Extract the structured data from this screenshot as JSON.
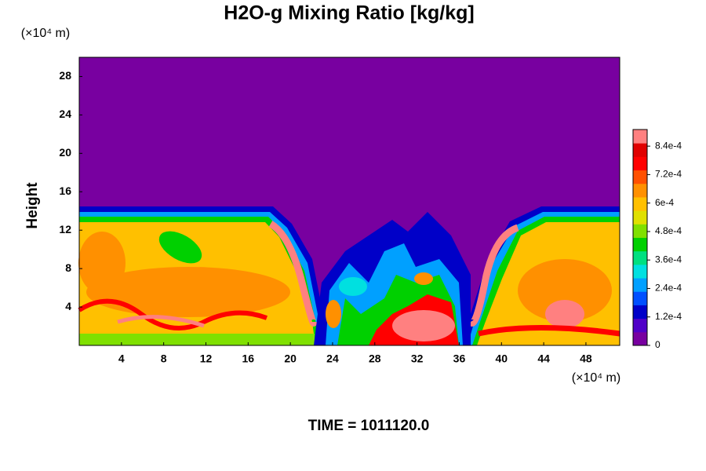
{
  "chart_data": {
    "type": "heatmap",
    "title": "H2O-g Mixing Ratio [kg/kg]",
    "ylabel": "Height",
    "x_unit_label": "(×10⁴ m)",
    "y_unit_label": "(×10⁴ m)",
    "annotation": "TIME = 1011120.0",
    "xlim": [
      0,
      51.2
    ],
    "xticks": [
      4,
      8,
      12,
      16,
      20,
      24,
      28,
      32,
      36,
      40,
      44,
      48
    ],
    "ylim": [
      0,
      30
    ],
    "yticks": [
      4,
      8,
      12,
      16,
      20,
      24,
      28
    ],
    "clim": [
      0,
      0.00091
    ],
    "cticks": [
      0,
      {
        "value": 0.00012,
        "label": "1.2e-4"
      },
      {
        "value": 0.00024,
        "label": "2.4e-4"
      },
      {
        "value": 0.00036,
        "label": "3.6e-4"
      },
      {
        "value": 0.00048,
        "label": "4.8e-4"
      },
      {
        "value": 0.0006,
        "label": "6e-4"
      },
      {
        "value": 0.00072,
        "label": "7.2e-4"
      },
      {
        "value": 0.00084,
        "label": "8.4e-4"
      }
    ],
    "colormap": [
      "#7800a0",
      "#5000c8",
      "#0000c8",
      "#0050ff",
      "#00a0ff",
      "#00e0e0",
      "#00e080",
      "#00d000",
      "#80e000",
      "#e0e000",
      "#ffc000",
      "#ff9000",
      "#ff5000",
      "#ff0000",
      "#e00000",
      "#ff8080"
    ]
  }
}
